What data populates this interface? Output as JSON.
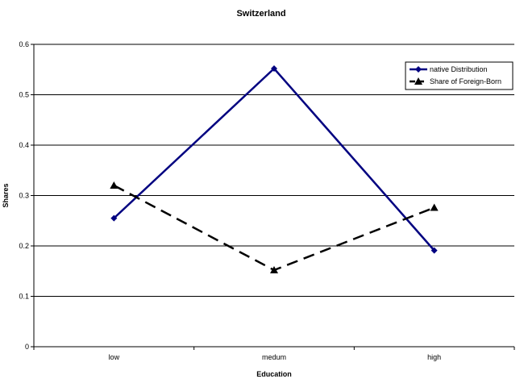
{
  "chart_data": {
    "type": "line",
    "title": "Switzerland",
    "xlabel": "Education",
    "ylabel": "Shares",
    "categories": [
      "low",
      "medum",
      "high"
    ],
    "ylim": [
      0,
      0.6
    ],
    "yticks": [
      "0",
      "0.1",
      "0.2",
      "0.3",
      "0.4",
      "0.5",
      "0.6"
    ],
    "grid": true,
    "legend_position": "top-right",
    "series": [
      {
        "name": "native Distribution",
        "values": [
          0.255,
          0.552,
          0.191
        ],
        "color": "#000080",
        "style": "solid",
        "marker": "diamond"
      },
      {
        "name": "Share of Foreign-Born",
        "values": [
          0.32,
          0.152,
          0.276
        ],
        "color": "#000000",
        "style": "dashed",
        "marker": "triangle"
      }
    ]
  }
}
